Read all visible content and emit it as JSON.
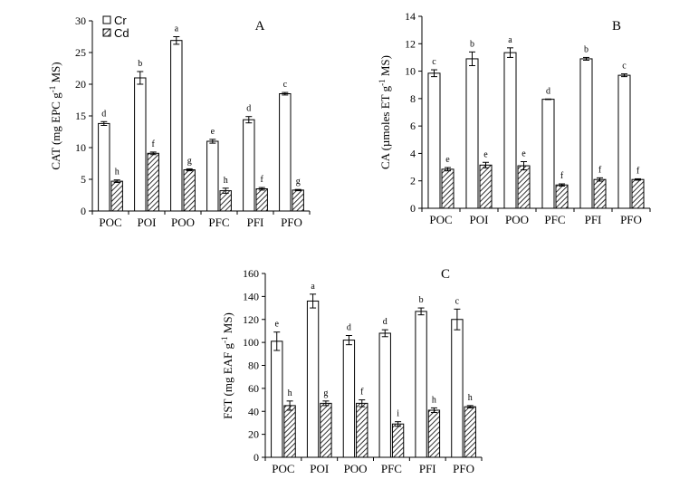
{
  "legend": {
    "series1": "Cr",
    "series2": "Cd"
  },
  "chart_data": [
    {
      "type": "bar",
      "panel": "A",
      "title": "A",
      "ylabel_parts": {
        "pre": "CAT (mg EPC g",
        "sup": "-1",
        "post": " MS)"
      },
      "categories": [
        "POC",
        "POI",
        "POO",
        "PFC",
        "PFI",
        "PFO"
      ],
      "ylim": [
        0,
        30
      ],
      "yticks": [
        0,
        5,
        10,
        15,
        20,
        25,
        30
      ],
      "series": [
        {
          "name": "Cr",
          "values": [
            13.8,
            21.0,
            26.9,
            11.0,
            14.4,
            18.5
          ],
          "errors": [
            0.3,
            1.0,
            0.6,
            0.3,
            0.5,
            0.2
          ],
          "letters": [
            "d",
            "b",
            "a",
            "e",
            "d",
            "c"
          ]
        },
        {
          "name": "Cd",
          "values": [
            4.7,
            9.1,
            6.5,
            3.2,
            3.5,
            3.3
          ],
          "errors": [
            0.2,
            0.2,
            0.15,
            0.4,
            0.2,
            0.1
          ],
          "letters": [
            "h",
            "f",
            "g",
            "h",
            "f",
            "g"
          ]
        }
      ]
    },
    {
      "type": "bar",
      "panel": "B",
      "title": "B",
      "ylabel_parts": {
        "pre": "CA (µmoles ET g",
        "sup": "-1",
        "post": " MS)"
      },
      "categories": [
        "POC",
        "POI",
        "POO",
        "PFC",
        "PFI",
        "PFO"
      ],
      "ylim": [
        0,
        14
      ],
      "yticks": [
        0,
        2,
        4,
        6,
        8,
        10,
        12,
        14
      ],
      "series": [
        {
          "name": "Cr",
          "values": [
            9.85,
            10.9,
            11.35,
            7.95,
            10.9,
            9.7
          ],
          "errors": [
            0.25,
            0.5,
            0.35,
            0.02,
            0.1,
            0.1
          ],
          "letters": [
            "c",
            "b",
            "a",
            "d",
            "b",
            "c"
          ]
        },
        {
          "name": "Cd",
          "values": [
            2.85,
            3.15,
            3.1,
            1.7,
            2.1,
            2.1
          ],
          "errors": [
            0.12,
            0.2,
            0.3,
            0.08,
            0.12,
            0.05
          ],
          "letters": [
            "e",
            "e",
            "e",
            "f",
            "f",
            "f"
          ]
        }
      ]
    },
    {
      "type": "bar",
      "panel": "C",
      "title": "C",
      "ylabel_parts": {
        "pre": "FST (mg EAF g",
        "sup": "-1",
        "post": " MS)"
      },
      "categories": [
        "POC",
        "POI",
        "POO",
        "PFC",
        "PFI",
        "PFO"
      ],
      "ylim": [
        0,
        160
      ],
      "yticks": [
        0,
        20,
        40,
        60,
        80,
        100,
        120,
        140,
        160
      ],
      "series": [
        {
          "name": "Cr",
          "values": [
            101,
            136,
            102,
            108,
            127,
            120
          ],
          "errors": [
            8,
            6,
            4,
            3,
            3,
            9
          ],
          "letters": [
            "e",
            "a",
            "d",
            "d",
            "b",
            "c"
          ]
        },
        {
          "name": "Cd",
          "values": [
            45,
            47,
            47,
            29,
            41,
            44
          ],
          "errors": [
            4,
            2,
            3,
            2,
            2,
            1
          ],
          "letters": [
            "h",
            "g",
            "f",
            "i",
            "h",
            "h"
          ]
        }
      ]
    }
  ]
}
